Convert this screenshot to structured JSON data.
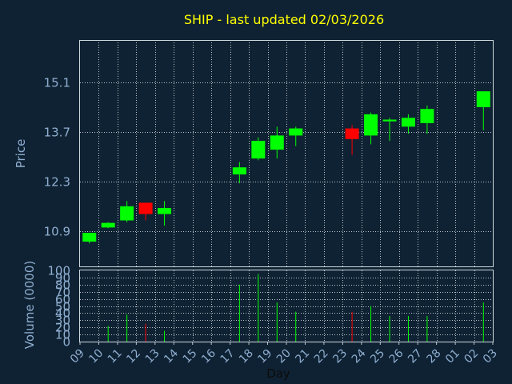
{
  "chart_data": [
    {
      "type": "candlestick",
      "title": "SHIP - last updated 02/03/2026",
      "xlabel": "Day",
      "ylabel": "Price",
      "ylim": [
        9.9,
        16.3
      ],
      "yticks": [
        10.9,
        12.3,
        13.7,
        15.1
      ],
      "ytick_labels": [
        "10.9",
        "12.3",
        "13.7",
        "15.1"
      ],
      "x_categories": [
        "09",
        "10",
        "11",
        "12",
        "13",
        "14",
        "15",
        "16",
        "17",
        "18",
        "19",
        "20",
        "21",
        "22",
        "23",
        "24",
        "25",
        "26",
        "27",
        "28",
        "01",
        "02",
        "03"
      ],
      "grid": true,
      "candles": [
        {
          "x": 0,
          "open": 10.6,
          "high": 10.85,
          "low": 10.55,
          "close": 10.85
        },
        {
          "x": 1,
          "open": 11.0,
          "high": 11.15,
          "low": 10.98,
          "close": 11.13
        },
        {
          "x": 2,
          "open": 11.2,
          "high": 11.75,
          "low": 11.15,
          "close": 11.6
        },
        {
          "x": 3,
          "open": 11.7,
          "high": 11.7,
          "low": 11.2,
          "close": 11.38
        },
        {
          "x": 4,
          "open": 11.38,
          "high": 11.75,
          "low": 11.05,
          "close": 11.55
        },
        {
          "x": 8,
          "open": 12.5,
          "high": 12.85,
          "low": 12.25,
          "close": 12.7
        },
        {
          "x": 9,
          "open": 12.95,
          "high": 13.55,
          "low": 12.9,
          "close": 13.45
        },
        {
          "x": 10,
          "open": 13.2,
          "high": 13.85,
          "low": 12.95,
          "close": 13.6
        },
        {
          "x": 11,
          "open": 13.6,
          "high": 13.85,
          "low": 13.3,
          "close": 13.8
        },
        {
          "x": 14,
          "open": 13.8,
          "high": 13.9,
          "low": 13.05,
          "close": 13.5
        },
        {
          "x": 15,
          "open": 13.6,
          "high": 14.25,
          "low": 13.35,
          "close": 14.2
        },
        {
          "x": 16,
          "open": 14.0,
          "high": 14.1,
          "low": 13.45,
          "close": 14.05
        },
        {
          "x": 17,
          "open": 13.85,
          "high": 14.2,
          "low": 13.65,
          "close": 14.1
        },
        {
          "x": 18,
          "open": 13.95,
          "high": 14.45,
          "low": 13.65,
          "close": 14.35
        },
        {
          "x": 21,
          "open": 14.4,
          "high": 14.85,
          "low": 13.75,
          "close": 14.85
        }
      ]
    },
    {
      "type": "bar",
      "ylabel": "Volume (0000)",
      "ylim": [
        0,
        100
      ],
      "yticks": [
        0,
        10,
        20,
        30,
        40,
        50,
        60,
        70,
        80,
        90,
        100
      ],
      "ytick_labels": [
        "0",
        "10",
        "20",
        "30",
        "40",
        "50",
        "60",
        "70",
        "80",
        "90",
        "100"
      ],
      "x_categories": [
        "09",
        "10",
        "11",
        "12",
        "13",
        "14",
        "15",
        "16",
        "17",
        "18",
        "19",
        "20",
        "21",
        "22",
        "23",
        "24",
        "25",
        "26",
        "27",
        "28",
        "01",
        "02",
        "03"
      ],
      "bars": [
        {
          "x": 1,
          "value": 22,
          "color": "#00ff00"
        },
        {
          "x": 2,
          "value": 38,
          "color": "#00ff00"
        },
        {
          "x": 3,
          "value": 25,
          "color": "#ff0000"
        },
        {
          "x": 4,
          "value": 15,
          "color": "#00ff00"
        },
        {
          "x": 8,
          "value": 80,
          "color": "#00ff00"
        },
        {
          "x": 9,
          "value": 95,
          "color": "#00ff00"
        },
        {
          "x": 10,
          "value": 55,
          "color": "#00ff00"
        },
        {
          "x": 11,
          "value": 42,
          "color": "#00ff00"
        },
        {
          "x": 14,
          "value": 42,
          "color": "#ff0000"
        },
        {
          "x": 15,
          "value": 50,
          "color": "#00ff00"
        },
        {
          "x": 16,
          "value": 36,
          "color": "#00ff00"
        },
        {
          "x": 17,
          "value": 36,
          "color": "#00ff00"
        },
        {
          "x": 18,
          "value": 36,
          "color": "#00ff00"
        },
        {
          "x": 21,
          "value": 55,
          "color": "#00ff00"
        }
      ]
    }
  ],
  "colors": {
    "background": "#0f2233",
    "up": "#00ff00",
    "down": "#ff0000",
    "grid": "#b8c4cc",
    "axis_text": "#8faed0",
    "title": "#ffff00"
  }
}
